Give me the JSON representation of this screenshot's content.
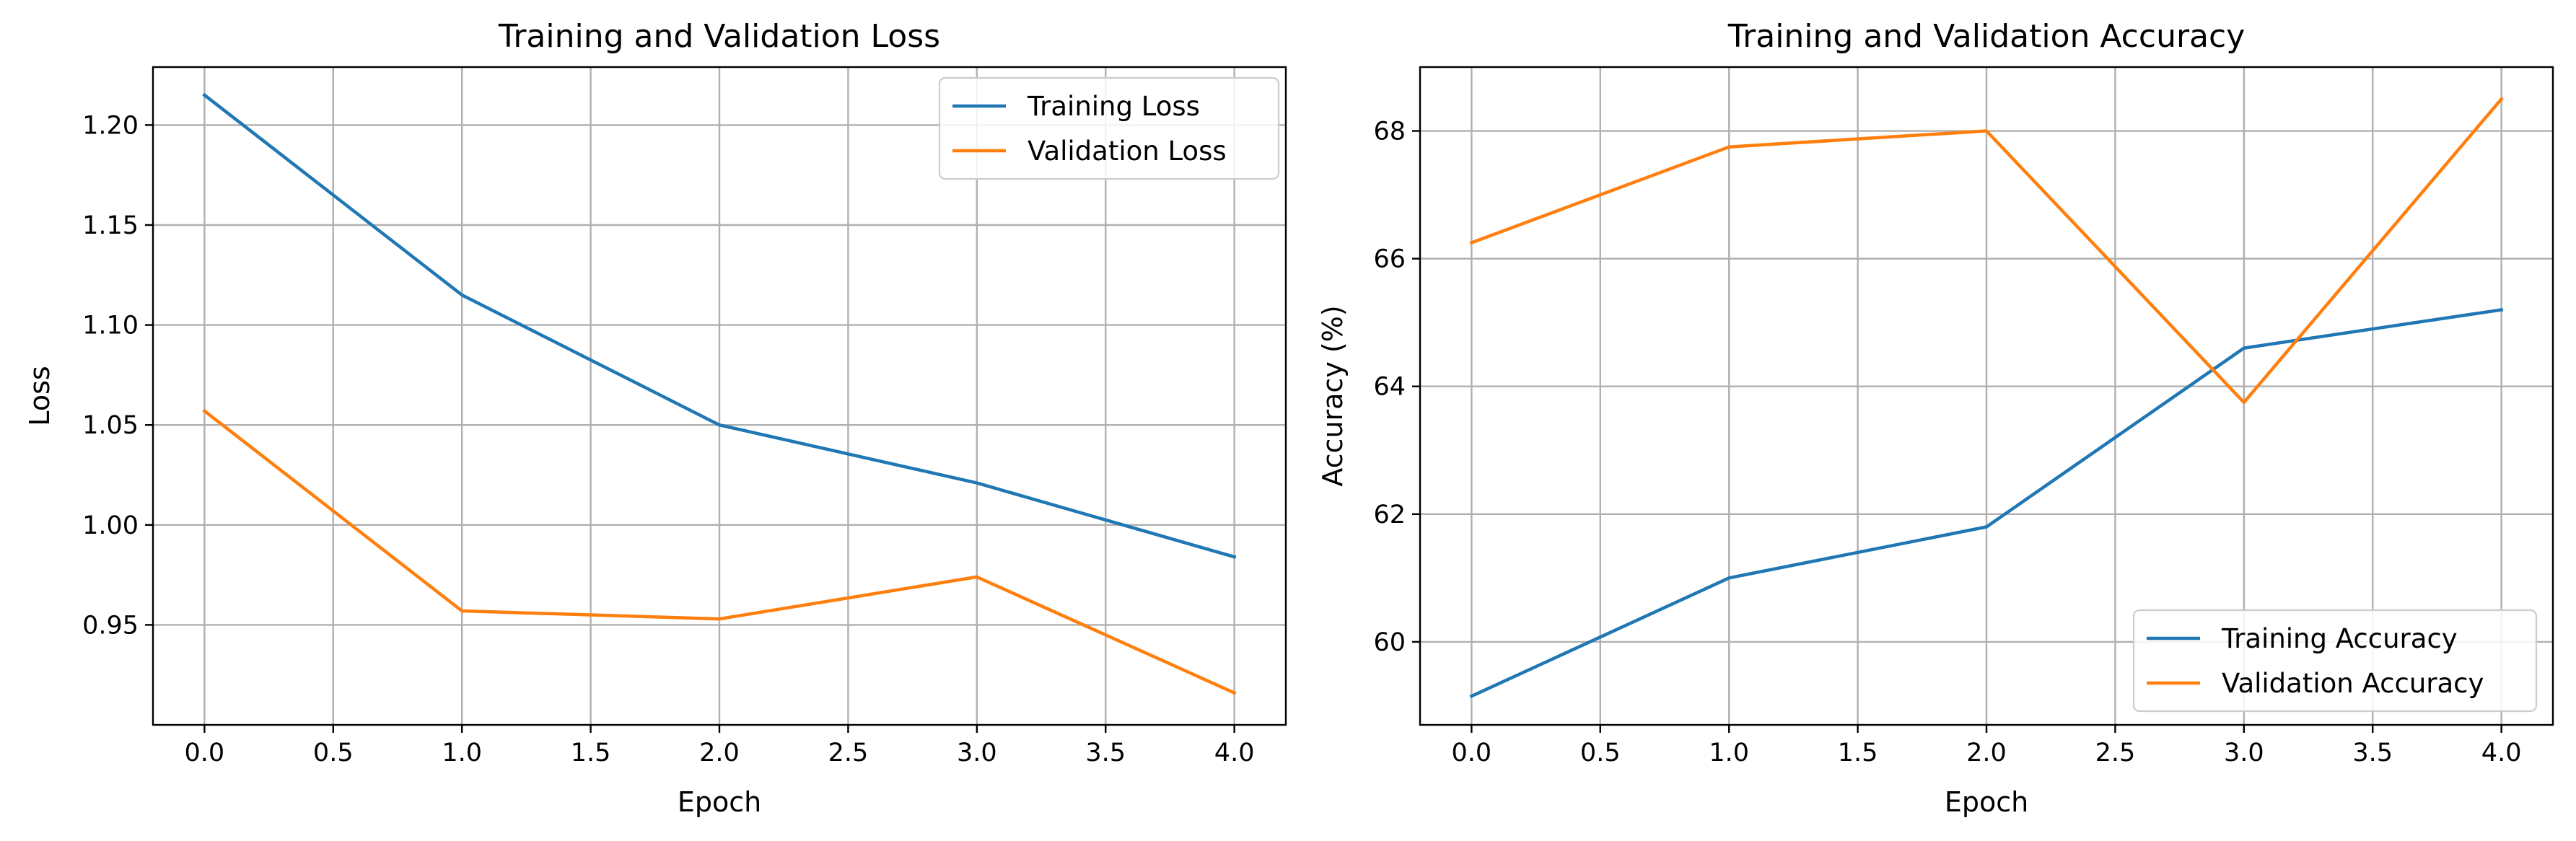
{
  "chart_data": [
    {
      "type": "line",
      "title": "Training and Validation Loss",
      "xlabel": "Epoch",
      "ylabel": "Loss",
      "x": [
        0,
        1,
        2,
        3,
        4
      ],
      "xlim": [
        -0.2,
        4.2
      ],
      "ylim": [
        0.9,
        1.229
      ],
      "xticks": [
        0.0,
        0.5,
        1.0,
        1.5,
        2.0,
        2.5,
        3.0,
        3.5,
        4.0
      ],
      "yticks": [
        0.95,
        1.0,
        1.05,
        1.1,
        1.15,
        1.2
      ],
      "tick_decimals": {
        "x": 1,
        "y": 2
      },
      "grid": true,
      "legend_position": "upper right",
      "series": [
        {
          "name": "Training Loss",
          "color": "#1f77b4",
          "values": [
            1.215,
            1.115,
            1.05,
            1.021,
            0.984
          ]
        },
        {
          "name": "Validation Loss",
          "color": "#ff7f0e",
          "values": [
            1.057,
            0.957,
            0.953,
            0.974,
            0.916
          ]
        }
      ]
    },
    {
      "type": "line",
      "title": "Training and Validation Accuracy",
      "xlabel": "Epoch",
      "ylabel": "Accuracy (%)",
      "x": [
        0,
        1,
        2,
        3,
        4
      ],
      "xlim": [
        -0.2,
        4.2
      ],
      "ylim": [
        58.7,
        69.0
      ],
      "xticks": [
        0.0,
        0.5,
        1.0,
        1.5,
        2.0,
        2.5,
        3.0,
        3.5,
        4.0
      ],
      "yticks": [
        60,
        62,
        64,
        66,
        68
      ],
      "tick_decimals": {
        "x": 1,
        "y": 0
      },
      "grid": true,
      "legend_position": "lower right",
      "series": [
        {
          "name": "Training Accuracy",
          "color": "#1f77b4",
          "values": [
            59.15,
            61.0,
            61.8,
            64.6,
            65.2
          ]
        },
        {
          "name": "Validation Accuracy",
          "color": "#ff7f0e",
          "values": [
            66.25,
            67.75,
            68.0,
            63.75,
            68.5
          ]
        }
      ]
    }
  ]
}
